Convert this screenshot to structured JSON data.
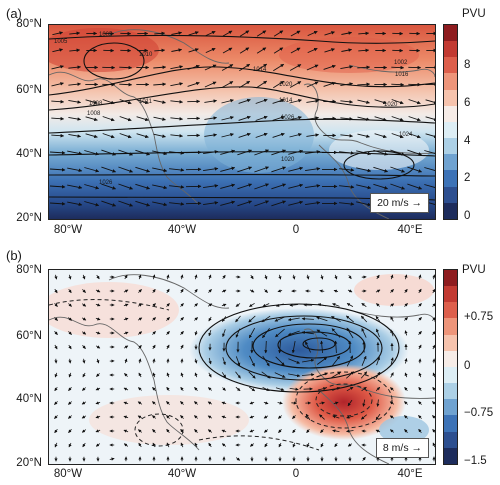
{
  "panels": [
    {
      "label": "(a)",
      "lat_labels": [
        "80°N",
        "60°N",
        "40°N",
        "20°N"
      ],
      "lon_labels": [
        "80°W",
        "40°W",
        "0",
        "40°E"
      ],
      "colorbar": {
        "unit": "PVU",
        "ticks": [
          "8",
          "6",
          "4",
          "2",
          "0"
        ],
        "colors": [
          "#1d2c5c",
          "#2d4f90",
          "#3d73b7",
          "#6fa2d0",
          "#acd0e6",
          "#ddeef5",
          "#f6ece7",
          "#f6c3ad",
          "#ee957a",
          "#dd5f4c",
          "#c23a32",
          "#8e1c1f"
        ]
      },
      "reference_vector": "20 m/s →",
      "isobar_labels": [
        "1005",
        "1008",
        "1010",
        "1011",
        "1014",
        "1020",
        "1026",
        "1016",
        "1024",
        "1020",
        "1005",
        "1008",
        "1014",
        "1002",
        "1020",
        "1026"
      ]
    },
    {
      "label": "(b)",
      "lat_labels": [
        "80°N",
        "60°N",
        "40°N",
        "20°N"
      ],
      "lon_labels": [
        "80°W",
        "40°W",
        "0",
        "40°E"
      ],
      "colorbar": {
        "unit": "PVU",
        "ticks": [
          "+0.75",
          "0",
          "−0.75",
          "−1.5"
        ],
        "colors": [
          "#1d2c5c",
          "#2d4f90",
          "#3d73b7",
          "#6fa2d0",
          "#acd0e6",
          "#ddeef5",
          "#f6ece7",
          "#f6c3ad",
          "#ee957a",
          "#dd5f4c",
          "#c23a32",
          "#8e1c1f"
        ]
      },
      "reference_vector": "8 m/s →"
    }
  ],
  "icons": {
    "wind_vector": "arrow-icon",
    "coastline": "coastline-outline"
  }
}
